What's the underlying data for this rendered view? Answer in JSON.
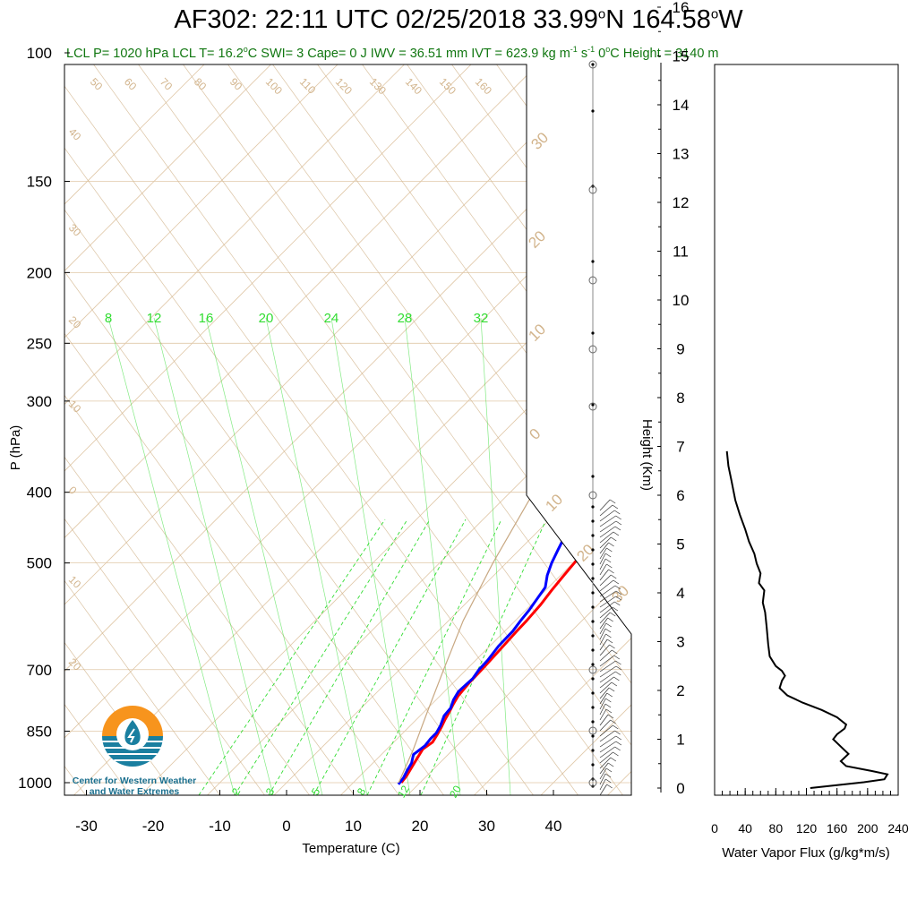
{
  "header": {
    "title_main": "AF302: 22:11 UTC 02/25/2018  33.99",
    "title_deg1": "o",
    "title_lat_unit": "N 164.58",
    "title_deg2": "o",
    "title_lon_unit": "W",
    "subtitle_a": "LCL P= 1020 hPa  LCL T= 16.2",
    "subtitle_deg": "o",
    "subtitle_b": "C  SWI= 3  Cape= 0 J  IWV = 36.51 mm  IVT = 623.9 kg m",
    "subtitle_exp1": "-1",
    "subtitle_c": " s",
    "subtitle_exp2": "-1",
    "subtitle_d": "  0",
    "subtitle_deg2": "o",
    "subtitle_e": "C Height = 3140 m"
  },
  "logo": {
    "line1": "Center for Western Weather",
    "line2": "and Water Extremes",
    "colors": {
      "orange": "#f7941d",
      "teal": "#1a7fa0",
      "white": "#ffffff"
    }
  },
  "colors": {
    "temperature": "#ff0000",
    "dewpoint": "#0000ff",
    "dry_adiabat": "#d2b48c",
    "mixing_ratio": "#33dd33",
    "parcel": "#c8a882",
    "grid": "#e0c8a8",
    "axes": "#000000"
  },
  "chart_data": [
    {
      "type": "line",
      "subtype": "skew-T log-P sounding",
      "xlabel": "Temperature (C)",
      "ylabel": "P (hPa)",
      "y_right_label": "Height (Km)",
      "x_ticks": [
        "-30",
        "-20",
        "-10",
        "0",
        "10",
        "20",
        "30",
        "40"
      ],
      "y_ticks": [
        "100",
        "150",
        "200",
        "250",
        "300",
        "400",
        "500",
        "700",
        "850",
        "1000"
      ],
      "height_ticks": [
        "0",
        "1",
        "2",
        "3",
        "4",
        "5",
        "6",
        "7",
        "8",
        "9",
        "10",
        "11",
        "12",
        "13",
        "14",
        "15",
        "16"
      ],
      "xlim": [
        -33,
        40
      ],
      "ylim": [
        1050,
        100
      ],
      "y_scale": "log",
      "skew_label_left": [
        "50",
        "60",
        "70",
        "80",
        "90",
        "100",
        "110",
        "120",
        "130",
        "140",
        "150",
        "160"
      ],
      "skew_label_left_side": [
        "40",
        "30",
        "20",
        "10",
        "0",
        "10",
        "20"
      ],
      "dry_adiabat_labels": [
        "30",
        "20",
        "10",
        "0",
        "10",
        "20",
        "30"
      ],
      "mixing_ratio_labels_top": [
        "8",
        "12",
        "16",
        "20",
        "24",
        "28",
        "32"
      ],
      "mixing_ratio_labels_bottom": [
        "2",
        "3",
        "5",
        "8",
        "12",
        "20"
      ],
      "series": [
        {
          "name": "temperature",
          "points": [
            [
              17.2,
              1000
            ],
            [
              17.0,
              980
            ],
            [
              16.6,
              960
            ],
            [
              16.0,
              930
            ],
            [
              15.4,
              900
            ],
            [
              15.8,
              880
            ],
            [
              15.4,
              860
            ],
            [
              14.9,
              840
            ],
            [
              14.3,
              820
            ],
            [
              13.8,
              800
            ],
            [
              13.2,
              780
            ],
            [
              12.7,
              760
            ],
            [
              12.4,
              730
            ],
            [
              12.3,
              700
            ],
            [
              12.2,
              680
            ],
            [
              12.0,
              650
            ],
            [
              11.8,
              620
            ],
            [
              11.7,
              600
            ],
            [
              11.4,
              570
            ],
            [
              10.9,
              545
            ],
            [
              10.5,
              520
            ],
            [
              10.2,
              500
            ],
            [
              9.8,
              480
            ],
            [
              9.1,
              460
            ],
            [
              8.3,
              445
            ],
            [
              7.4,
              430
            ],
            [
              6.5,
              420
            ]
          ]
        },
        {
          "name": "dewpoint",
          "points": [
            [
              17.0,
              1005
            ],
            [
              16.8,
              985
            ],
            [
              16.2,
              960
            ],
            [
              15.8,
              940
            ],
            [
              14.8,
              915
            ],
            [
              15.2,
              890
            ],
            [
              15.0,
              870
            ],
            [
              15.0,
              855
            ],
            [
              14.5,
              835
            ],
            [
              13.6,
              810
            ],
            [
              13.4,
              790
            ],
            [
              12.6,
              770
            ],
            [
              12.1,
              750
            ],
            [
              12.3,
              720
            ],
            [
              11.9,
              700
            ],
            [
              11.8,
              680
            ],
            [
              11.3,
              650
            ],
            [
              11.2,
              620
            ],
            [
              10.8,
              600
            ],
            [
              10.5,
              580
            ],
            [
              10.0,
              560
            ],
            [
              9.5,
              540
            ],
            [
              8.0,
              520
            ],
            [
              6.8,
              500
            ],
            [
              5.8,
              480
            ],
            [
              4.8,
              460
            ],
            [
              4.0,
              440
            ],
            [
              3.3,
              425
            ],
            [
              2.8,
              418
            ]
          ]
        },
        {
          "name": "parcel",
          "points": [
            [
              16.8,
              1000
            ],
            [
              14.0,
              900
            ],
            [
              10.5,
              800
            ],
            [
              6.6,
              700
            ],
            [
              2.2,
              600
            ],
            [
              -2.0,
              500
            ],
            [
              -6.5,
              400
            ],
            [
              -13.0,
              300
            ],
            [
              -20.0,
              250
            ],
            [
              -25.0,
              225
            ],
            [
              -20.0,
              150
            ],
            [
              -15.0,
              100
            ]
          ]
        }
      ]
    },
    {
      "type": "line",
      "xlabel": "Water Vapor Flux (g/kg*m/s)",
      "ylabel": "Height (Km)",
      "x_ticks": [
        "0",
        "40",
        "80",
        "120",
        "160",
        "200",
        "240"
      ],
      "xlim": [
        0,
        240
      ],
      "ylim": [
        0,
        16.3
      ],
      "series": [
        {
          "name": "water_vapor_flux",
          "points": [
            [
              125,
              0.0
            ],
            [
              160,
              0.06
            ],
            [
              195,
              0.12
            ],
            [
              222,
              0.18
            ],
            [
              226,
              0.28
            ],
            [
              205,
              0.35
            ],
            [
              172,
              0.45
            ],
            [
              165,
              0.55
            ],
            [
              175,
              0.7
            ],
            [
              165,
              0.85
            ],
            [
              155,
              1.0
            ],
            [
              160,
              1.1
            ],
            [
              170,
              1.22
            ],
            [
              172,
              1.3
            ],
            [
              160,
              1.45
            ],
            [
              140,
              1.6
            ],
            [
              115,
              1.75
            ],
            [
              95,
              1.9
            ],
            [
              85,
              2.05
            ],
            [
              88,
              2.2
            ],
            [
              92,
              2.3
            ],
            [
              88,
              2.4
            ],
            [
              80,
              2.5
            ],
            [
              72,
              2.7
            ],
            [
              70,
              2.95
            ],
            [
              68,
              3.3
            ],
            [
              66,
              3.6
            ],
            [
              63,
              3.8
            ],
            [
              65,
              4.05
            ],
            [
              58,
              4.2
            ],
            [
              60,
              4.4
            ],
            [
              55,
              4.6
            ],
            [
              52,
              4.8
            ],
            [
              45,
              5.05
            ],
            [
              40,
              5.3
            ],
            [
              33,
              5.6
            ],
            [
              27,
              5.9
            ],
            [
              22,
              6.3
            ],
            [
              18,
              6.6
            ],
            [
              16,
              6.9
            ]
          ]
        }
      ]
    }
  ]
}
